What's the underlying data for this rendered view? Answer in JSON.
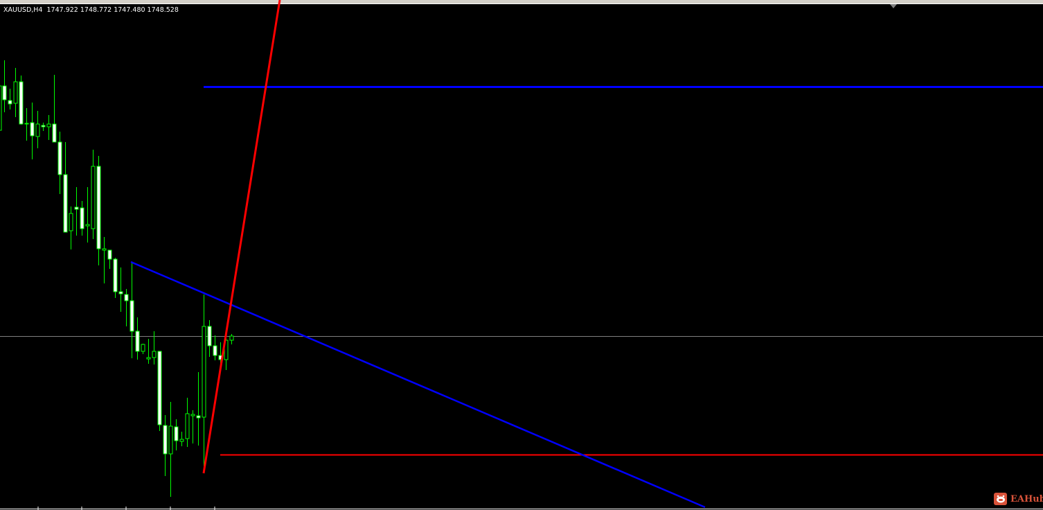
{
  "chart_header": {
    "symbol_timeframe": "XAUUSD,H4",
    "ohlc": "1747.922 1748.772 1747.480 1748.528"
  },
  "bid_price": 1748.528,
  "colors": {
    "background": "#000000",
    "candle": "#00ff00",
    "bear_body": "#ffffff",
    "bid_line": "#808080",
    "trendline_blue": "#0000ff",
    "trendline_red": "#ff0000"
  },
  "objects": [
    "blue-horizontal-line",
    "red-horizontal-line",
    "blue-trendline",
    "red-trendline"
  ],
  "watermark": {
    "text": "EAHub",
    "icon": "robot-icon"
  }
}
